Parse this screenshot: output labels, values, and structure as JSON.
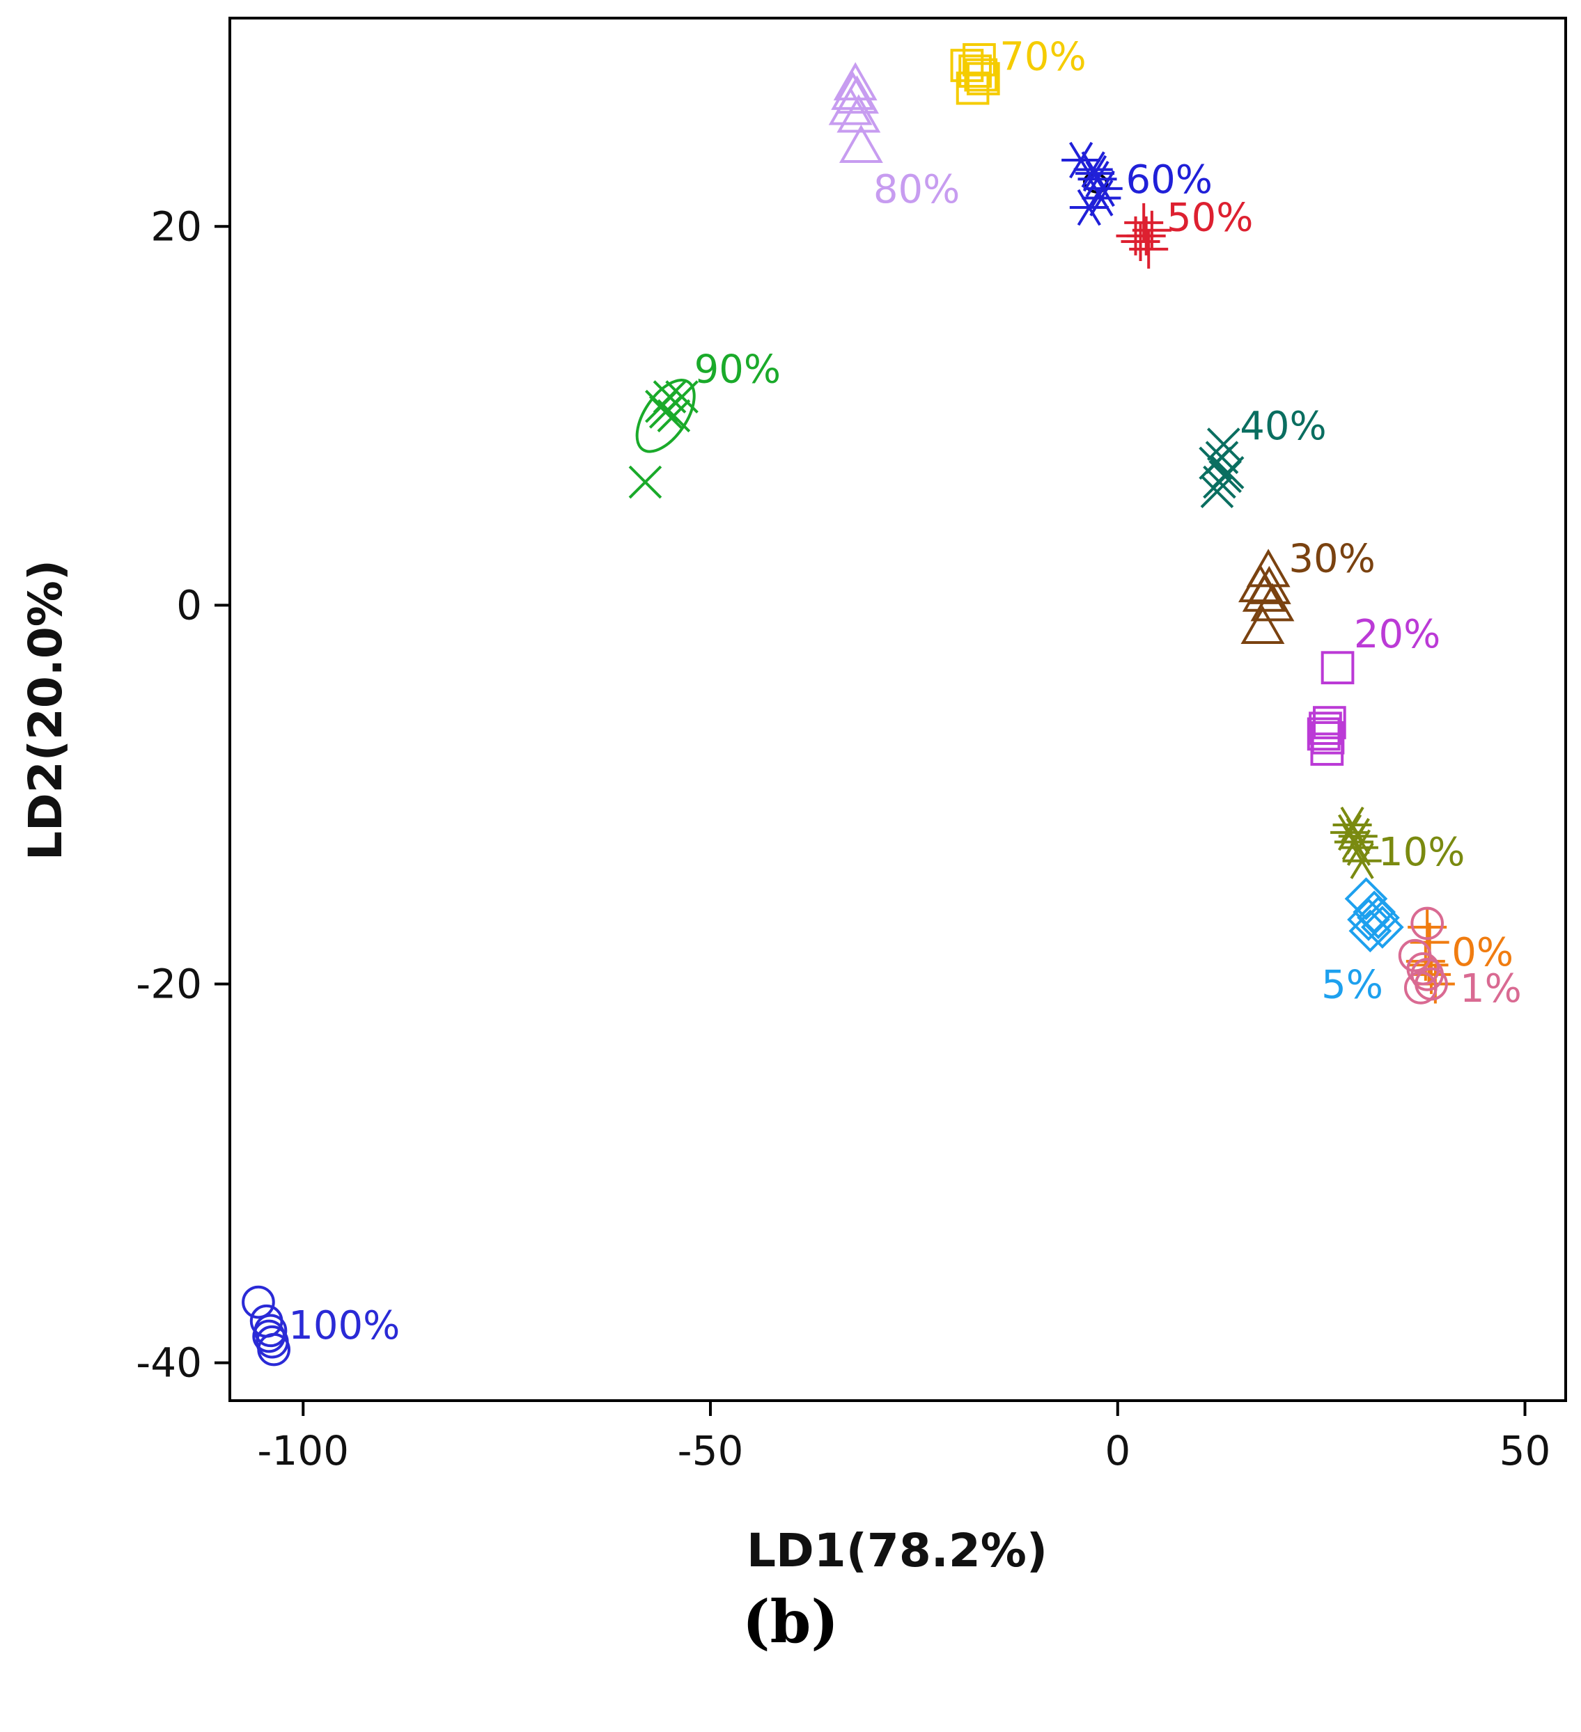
{
  "panel_label": "(b)",
  "chart_data": {
    "type": "scatter",
    "xlabel": "LD1(78.2%)",
    "ylabel": "LD2(20.0%)",
    "xlim": [
      -109,
      55
    ],
    "ylim": [
      -42,
      31
    ],
    "xticks": [
      -100,
      -50,
      0,
      50
    ],
    "yticks": [
      -40,
      -20,
      0,
      20
    ],
    "grid": false,
    "series": [
      {
        "name": "100%",
        "color": "#2a2ad6",
        "marker": "circle",
        "points": [
          [
            -105.5,
            -36.8
          ],
          [
            -104.5,
            -37.8
          ],
          [
            -104.0,
            -38.3
          ],
          [
            -103.8,
            -38.9
          ],
          [
            -103.6,
            -39.3
          ],
          [
            -104.2,
            -38.6
          ]
        ],
        "ellipse": null,
        "label_pos": [
          -101.8,
          -38.0
        ]
      },
      {
        "name": "90%",
        "color": "#1aaa2a",
        "marker": "x",
        "points": [
          [
            -58.0,
            6.5
          ],
          [
            -56.0,
            10.5
          ],
          [
            -55.0,
            11.0
          ],
          [
            -54.5,
            10.0
          ],
          [
            -53.5,
            11.0
          ],
          [
            -55.5,
            10.2
          ]
        ],
        "ellipse": {
          "cx": -55.5,
          "cy": 10.0,
          "rx": 5.0,
          "ry": 1.1,
          "angle": 56
        },
        "label_pos": [
          -52.0,
          12.5
        ]
      },
      {
        "name": "80%",
        "color": "#c79cf0",
        "marker": "triangle",
        "points": [
          [
            -32.5,
            27.0
          ],
          [
            -32.0,
            26.8
          ],
          [
            -32.8,
            26.2
          ],
          [
            -31.8,
            25.8
          ],
          [
            -31.5,
            24.2
          ],
          [
            -32.2,
            27.5
          ]
        ],
        "ellipse": null,
        "label_pos": [
          -30.0,
          22.0
        ]
      },
      {
        "name": "70%",
        "color": "#f5cc00",
        "marker": "square",
        "points": [
          [
            -18.5,
            28.5
          ],
          [
            -17.5,
            28.2
          ],
          [
            -17.0,
            28.8
          ],
          [
            -16.5,
            27.8
          ],
          [
            -17.8,
            27.3
          ],
          [
            -16.8,
            28.0
          ]
        ],
        "ellipse": null,
        "label_pos": [
          -14.5,
          29.0
        ]
      },
      {
        "name": "60%",
        "color": "#2020d8",
        "marker": "asterisk",
        "points": [
          [
            -4.5,
            23.5
          ],
          [
            -3.0,
            23.0
          ],
          [
            -2.5,
            22.5
          ],
          [
            -1.8,
            22.0
          ],
          [
            -3.5,
            21.0
          ],
          [
            -2.0,
            21.5
          ],
          [
            -2.8,
            22.8
          ]
        ],
        "ellipse": {
          "cx": -2.7,
          "cy": 22.3,
          "rx": 1.1,
          "ry": 0.6,
          "angle": 75
        },
        "label_pos": [
          1.0,
          22.5
        ]
      },
      {
        "name": "50%",
        "color": "#dd2030",
        "marker": "plus",
        "points": [
          [
            2.2,
            19.5
          ],
          [
            3.2,
            20.2
          ],
          [
            3.5,
            19.5
          ],
          [
            4.2,
            19.8
          ],
          [
            3.8,
            18.8
          ],
          [
            2.8,
            19.2
          ]
        ],
        "ellipse": null,
        "label_pos": [
          6.0,
          20.5
        ]
      },
      {
        "name": "40%",
        "color": "#0a6e60",
        "marker": "x",
        "points": [
          [
            12.0,
            7.5
          ],
          [
            13.0,
            8.5
          ],
          [
            12.5,
            6.5
          ],
          [
            13.5,
            7.0
          ],
          [
            12.2,
            6.0
          ],
          [
            13.2,
            6.8
          ],
          [
            12.8,
            7.8
          ]
        ],
        "ellipse": null,
        "label_pos": [
          15.0,
          9.5
        ]
      },
      {
        "name": "30%",
        "color": "#7a4210",
        "marker": "triangle",
        "points": [
          [
            17.5,
            1.0
          ],
          [
            18.5,
            1.8
          ],
          [
            18.0,
            0.5
          ],
          [
            19.0,
            0.0
          ],
          [
            17.8,
            -1.2
          ],
          [
            18.6,
            0.9
          ]
        ],
        "ellipse": null,
        "label_pos": [
          21.0,
          2.5
        ]
      },
      {
        "name": "20%",
        "color": "#bb3ad6",
        "marker": "square",
        "points": [
          [
            27.0,
            -3.3
          ],
          [
            25.5,
            -6.5
          ],
          [
            25.8,
            -7.0
          ],
          [
            25.3,
            -6.8
          ],
          [
            25.7,
            -7.6
          ],
          [
            26.0,
            -6.2
          ]
        ],
        "ellipse": null,
        "label_pos": [
          29.0,
          -1.5
        ]
      },
      {
        "name": "10%",
        "color": "#7a8a10",
        "marker": "asterisk",
        "points": [
          [
            28.5,
            -12.0
          ],
          [
            29.0,
            -12.5
          ],
          [
            29.5,
            -12.2
          ],
          [
            30.0,
            -13.5
          ],
          [
            28.8,
            -11.6
          ],
          [
            29.6,
            -12.8
          ]
        ],
        "ellipse": null,
        "label_pos": [
          32.0,
          -13.0
        ]
      },
      {
        "name": "5%",
        "color": "#1da0ee",
        "marker": "diamond",
        "points": [
          [
            30.5,
            -15.5
          ],
          [
            31.5,
            -16.2
          ],
          [
            32.0,
            -16.5
          ],
          [
            31.0,
            -17.2
          ],
          [
            32.5,
            -17.0
          ],
          [
            30.8,
            -16.6
          ]
        ],
        "ellipse": null,
        "label_pos": [
          25.0,
          -20.0
        ]
      },
      {
        "name": "0%",
        "color": "#f07c10",
        "marker": "plus",
        "points": [
          [
            38.0,
            -17.0
          ],
          [
            38.3,
            -17.8
          ],
          [
            37.8,
            -18.8
          ],
          [
            38.5,
            -19.5
          ],
          [
            39.0,
            -20.0
          ],
          [
            38.2,
            -19.0
          ]
        ],
        "ellipse": null,
        "label_pos": [
          41.0,
          -18.3
        ]
      },
      {
        "name": "1%",
        "color": "#d96a92",
        "marker": "circle",
        "points": [
          [
            38.0,
            -16.8
          ],
          [
            36.5,
            -18.5
          ],
          [
            37.5,
            -19.2
          ],
          [
            38.0,
            -19.5
          ],
          [
            37.2,
            -20.2
          ],
          [
            38.5,
            -20.0
          ]
        ],
        "ellipse": null,
        "label_pos": [
          42.0,
          -20.2
        ]
      }
    ]
  }
}
